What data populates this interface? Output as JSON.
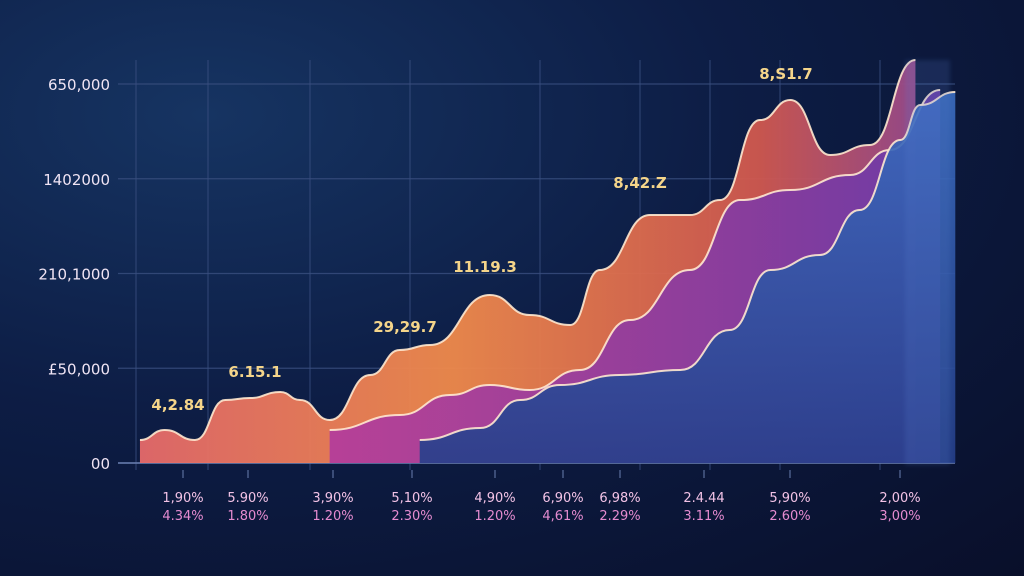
{
  "chart_data": {
    "type": "area",
    "title": "",
    "xlabel": "",
    "ylabel": "",
    "ylim": [
      0,
      650000
    ],
    "grid": true,
    "y_tick_labels": [
      "00",
      "£50,000",
      "210,1000",
      "1402000",
      "650,000"
    ],
    "x_tick_labels_row1": [
      "1,90%",
      "5.90%",
      "3,90%",
      "5,10%",
      "4,90%",
      "6,90%",
      "6,98%",
      "2.4.44",
      "5,90%",
      "2,00%"
    ],
    "x_tick_labels_row2": [
      "4.34%",
      "1.80%",
      "1.20%",
      "2.30%",
      "1.20%",
      "4,61%",
      "2.29%",
      "3.11%",
      "2.60%",
      "3,00%"
    ],
    "data_labels": [
      "4,2.84",
      "6.15.1",
      "29,29.7",
      "11.19.3",
      "8,42.Z",
      "8,S1.7"
    ],
    "colors": {
      "top_area": "#f08a4b",
      "middle_area": "#c0399a",
      "bottom_area": "#2f5aa8",
      "line": "#ffe9d0",
      "label": "#f5d58a",
      "tick_label": "#f2c2e6"
    },
    "series": [
      {
        "x": [
          -0.54,
          -0.23,
          0.15,
          0.53,
          0.84,
          1.22,
          1.47,
          1.84,
          2.35,
          2.72,
          3.1,
          3.85,
          4.35,
          4.86,
          5.23,
          5.86,
          6.36,
          6.74,
          7.24,
          7.62,
          8.12,
          8.62,
          9.19
        ],
        "values": [
          39400,
          56600,
          39400,
          108000,
          111500,
          121800,
          108000,
          73700,
          150900,
          193800,
          202400,
          288100,
          253800,
          236700,
          331000,
          425300,
          425300,
          451000,
          588200,
          622500,
          528200,
          545400,
          691100
        ]
      },
      {
        "x": [
          1.84,
          2.72,
          3.35,
          3.85,
          4.35,
          4.98,
          5.61,
          6.36,
          6.99,
          7.62,
          8.37,
          8.87,
          9.5
        ],
        "values": [
          56600,
          82300,
          116600,
          133800,
          125200,
          159500,
          245200,
          331000,
          451000,
          468200,
          493900,
          536800,
          639700
        ]
      },
      {
        "x": [
          2.97,
          3.73,
          4.23,
          4.73,
          5.48,
          6.24,
          6.86,
          7.37,
          7.99,
          8.49,
          9.0,
          9.25,
          9.69
        ],
        "values": [
          39400,
          60000,
          108000,
          133800,
          150900,
          159500,
          228100,
          331000,
          356700,
          433900,
          553900,
          614000,
          636300
        ]
      }
    ]
  }
}
